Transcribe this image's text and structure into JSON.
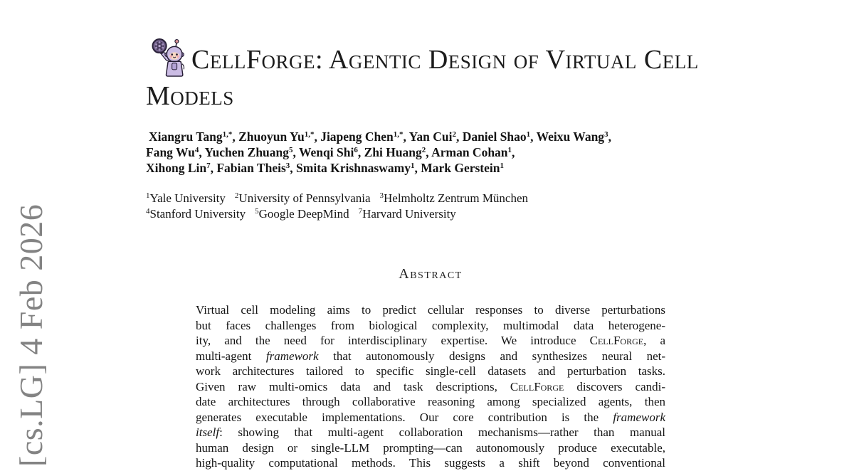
{
  "watermark": {
    "label": "[cs.LG] 4 Feb 2026",
    "color": "#838383"
  },
  "title": {
    "line1": "CellForge: Agentic Design of Virtual Cell",
    "line2": "Models",
    "logo_icon": "robot-holding-cell-dish"
  },
  "authors": {
    "lines": [
      [
        {
          "name": "Xiangru Tang",
          "sup": "1,*"
        },
        {
          "name": "Zhuoyun Yu",
          "sup": "1,*"
        },
        {
          "name": "Jiapeng Chen",
          "sup": "1,*"
        },
        {
          "name": "Yan Cui",
          "sup": "2"
        },
        {
          "name": "Daniel Shao",
          "sup": "1"
        },
        {
          "name": "Weixu Wang",
          "sup": "3"
        }
      ],
      [
        {
          "name": "Fang Wu",
          "sup": "4"
        },
        {
          "name": "Yuchen Zhuang",
          "sup": "5"
        },
        {
          "name": "Wenqi Shi",
          "sup": "6"
        },
        {
          "name": "Zhi Huang",
          "sup": "2"
        },
        {
          "name": "Arman Cohan",
          "sup": "1"
        }
      ],
      [
        {
          "name": "Xihong Lin",
          "sup": "7"
        },
        {
          "name": "Fabian Theis",
          "sup": "3"
        },
        {
          "name": "Smita Krishnaswamy",
          "sup": "1"
        },
        {
          "name": "Mark Gerstein",
          "sup": "1"
        }
      ]
    ]
  },
  "affiliations": {
    "lines": [
      [
        {
          "sup": "1",
          "name": "Yale University"
        },
        {
          "sup": "2",
          "name": "University of Pennsylvania"
        },
        {
          "sup": "3",
          "name": "Helmholtz Zentrum München"
        }
      ],
      [
        {
          "sup": "4",
          "name": "Stanford University"
        },
        {
          "sup": "5",
          "name": "Google DeepMind"
        },
        {
          "sup": "7",
          "name": "Harvard University"
        }
      ]
    ]
  },
  "abstract": {
    "heading": "Abstract",
    "lines": [
      [
        {
          "t": "Virtual cell modeling aims to predict cellular responses to diverse perturbations"
        }
      ],
      [
        {
          "t": "but faces challenges from biological complexity, multimodal data heterogene-"
        }
      ],
      [
        {
          "t": "ity, and the need for interdisciplinary expertise.  We introduce "
        },
        {
          "t": "CellForge",
          "s": "sc"
        },
        {
          "t": ", a"
        }
      ],
      [
        {
          "t": "multi-agent "
        },
        {
          "t": "framework",
          "s": "it"
        },
        {
          "t": " that autonomously designs and synthesizes neural net-"
        }
      ],
      [
        {
          "t": "work architectures tailored to specific single-cell datasets and perturbation tasks."
        }
      ],
      [
        {
          "t": "Given raw multi-omics data and task descriptions, "
        },
        {
          "t": "CellForge",
          "s": "sc"
        },
        {
          "t": " discovers candi-"
        }
      ],
      [
        {
          "t": "date architectures through collaborative reasoning among specialized agents, then"
        }
      ],
      [
        {
          "t": "generates executable implementations.  Our core contribution is the "
        },
        {
          "t": "framework",
          "s": "it"
        }
      ],
      [
        {
          "t": "itself",
          "s": "it"
        },
        {
          "t": ": showing that multi-agent collaboration mechanisms—rather than manual"
        }
      ],
      [
        {
          "t": "human design or single-LLM prompting—can autonomously produce executable,"
        }
      ],
      [
        {
          "t": "high-quality computational methods. This suggests a shift beyond conventional"
        }
      ]
    ]
  }
}
